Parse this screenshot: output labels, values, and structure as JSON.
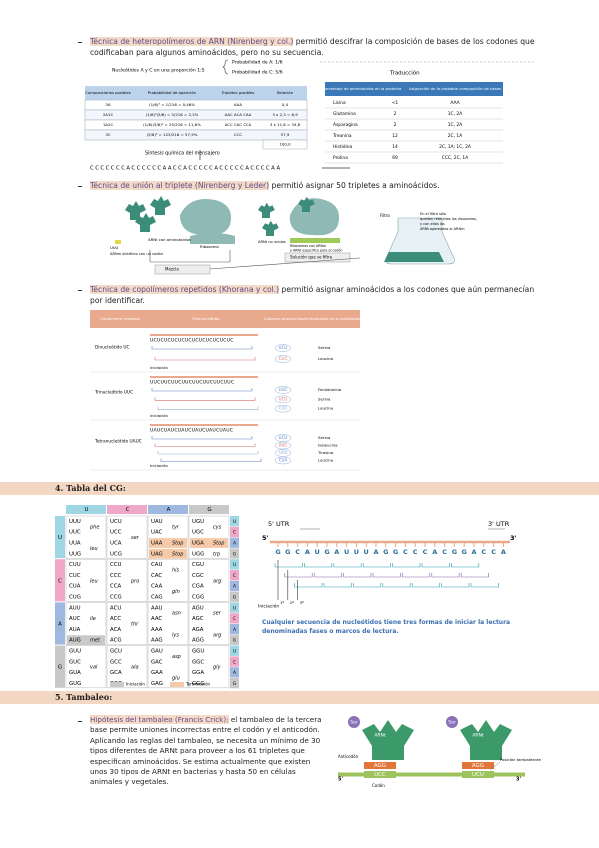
{
  "sections": [
    {
      "highlight": "Técnica de heteropolímeros de ARN (Nirenberg y col.)",
      "text": " permitió descifrar la composición de bases de los codones que codificaban para algunos aminoácidos, pero no su secuencia."
    },
    {
      "highlight": "Técnica de unión al triplete (Nirenberg y Leder)",
      "text": " permitió asignar 50 tripletes a aminoácidos."
    },
    {
      "highlight": "Técnica de copolímeros repetidos (Khorana y col.)",
      "text": " permitió asignar aminoácidos a los codones que aún permanecían por identificar."
    }
  ],
  "fig1": {
    "caption": "Nucleótidos A y C en una proporción 1:5",
    "prob_a": "Probabilidad de A: 1/6",
    "prob_c": "Probabilidad de C: 5/6",
    "left_headers": [
      "Composiciones posibles",
      "Probabilidad de aparición",
      "Tripletes posibles",
      "Relación"
    ],
    "left_rows": [
      [
        "3A",
        "(1/6)³ = 1/216 = 0,46%",
        "AAA",
        "0,4"
      ],
      [
        "2A1C",
        "(1/6)²(5/6) = 5/216 = 2,3%",
        "AAC ACA CAA",
        "3 x 2,3 = 6,9"
      ],
      [
        "1A2C",
        "(1/6)(5/6)² = 25/216 = 11,6%",
        "ACC CAC CCA",
        "3 x 11,6 = 34,8"
      ],
      [
        "3C",
        "(5/6)³ = 125/216 = 57,9%",
        "CCC",
        "57,9"
      ]
    ],
    "total": "100,0",
    "synthesis": "Síntesis química del mensajero",
    "sequence": "CCCCCCCACCCCCCAACCACCCCCACCCCCACCCCAA",
    "translation": "Traducción",
    "right_headers": [
      "Porcentaje de aminoácidos en la proteína",
      "Asignación de la probable composición de bases"
    ],
    "right_rows": [
      [
        "Lisina",
        "<1",
        "AAA"
      ],
      [
        "Glutamina",
        "2",
        "1C, 2A"
      ],
      [
        "Asparagina",
        "2",
        "1C, 2A"
      ],
      [
        "Treonina",
        "12",
        "2C, 1A"
      ],
      [
        "Histidina",
        "14",
        "2C, 1A; 1C, 2A"
      ],
      [
        "Prolina",
        "69",
        "CCC, 2C, 1A"
      ]
    ]
  },
  "fig2": {
    "labels": [
      "UUU",
      "ARNm sintético con un codón",
      "ARNt con aminoácidos",
      "Ribosoma",
      "ARNt no unidos",
      "Ribosomas con ARNm y ARNt específico para el codón",
      "Mezcla",
      "Solución que se filtra",
      "Filtro",
      "En el filtro sólo quedan retenidos los ribosomas, y con ellos los ARNt apareados al ARNm"
    ]
  },
  "fig3": {
    "headers": [
      "Copolímero repetido",
      "Polinucleótido",
      "Codones producidos",
      "Aminoácidos en el polipéptido"
    ],
    "start": "Iniciación",
    "rows": [
      {
        "name": "Dinucleótido UC",
        "strand": "UCUCUCUCUCUCUCUCUCUCUCUC",
        "codons": [
          "UCU",
          "CUC"
        ],
        "aa": [
          "Serina",
          "Leucina"
        ]
      },
      {
        "name": "Trinucleótido UUC",
        "strand": "UUCUUCUUCUUCUUCUUCUUCUUC",
        "codons": [
          "UUC",
          "UCU",
          "CUU"
        ],
        "aa": [
          "Fenilalanina",
          "Serina",
          "Leucina"
        ]
      },
      {
        "name": "Tetranucleótido UAUC",
        "strand": "UAUCUAUCUAUCUAUCUAUCUAUC",
        "codons": [
          "UCU",
          "AUC",
          "UAU",
          "CUA"
        ],
        "aa": [
          "Serina",
          "Isoleucina",
          "Tirosina",
          "Leucina"
        ]
      }
    ]
  },
  "heading4": "4.   Tabla del CG:",
  "codon_table": {
    "header": [
      "U",
      "C",
      "A",
      "G"
    ],
    "header_colors": [
      "#9fd6e3",
      "#f0a8c8",
      "#9fb8e0",
      "#c8c8c8"
    ],
    "left": [
      "U",
      "C",
      "A",
      "G"
    ],
    "third": [
      "U",
      "C",
      "A",
      "G"
    ],
    "cells": [
      {
        "codons": [
          "UUU",
          "UUC",
          "UUA",
          "UUG"
        ],
        "aa": [
          "phe",
          null,
          "leu",
          null
        ],
        "colors": [
          null,
          null,
          null,
          null
        ]
      },
      {
        "codons": [
          "UCU",
          "UCC",
          "UCA",
          "UCG"
        ],
        "aa": [
          "ser",
          null,
          null,
          null
        ],
        "colors": [
          null,
          null,
          null,
          null
        ]
      },
      {
        "codons": [
          "UAU",
          "UAC",
          "UAA",
          "UAG"
        ],
        "aa": [
          "tyr",
          null,
          "Stop",
          "Stop"
        ],
        "colors": [
          null,
          null,
          "#f6c9a8",
          "#f6c9a8"
        ]
      },
      {
        "codons": [
          "UGU",
          "UGC",
          "UGA",
          "UGG"
        ],
        "aa": [
          "cys",
          null,
          "Stop",
          "trp"
        ],
        "colors": [
          null,
          null,
          "#f6c9a8",
          null
        ]
      },
      {
        "codons": [
          "CUU",
          "CUC",
          "CUA",
          "CUG"
        ],
        "aa": [
          "leu",
          null,
          null,
          null
        ],
        "colors": [
          null,
          null,
          null,
          null
        ]
      },
      {
        "codons": [
          "CCU",
          "CCC",
          "CCA",
          "CCG"
        ],
        "aa": [
          "pro",
          null,
          null,
          null
        ],
        "colors": [
          null,
          null,
          null,
          null
        ]
      },
      {
        "codons": [
          "CAU",
          "CAC",
          "CAA",
          "CAG"
        ],
        "aa": [
          "his",
          null,
          "gln",
          null
        ],
        "colors": [
          null,
          null,
          null,
          null
        ]
      },
      {
        "codons": [
          "CGU",
          "CGC",
          "CGA",
          "CGG"
        ],
        "aa": [
          "arg",
          null,
          null,
          null
        ],
        "colors": [
          null,
          null,
          null,
          null
        ]
      },
      {
        "codons": [
          "AUU",
          "AUC",
          "AUA",
          "AUG"
        ],
        "aa": [
          "ile",
          null,
          null,
          "met"
        ],
        "colors": [
          null,
          null,
          null,
          "#c9c9c9"
        ]
      },
      {
        "codons": [
          "ACU",
          "ACC",
          "ACA",
          "ACG"
        ],
        "aa": [
          "thr",
          null,
          null,
          null
        ],
        "colors": [
          null,
          null,
          null,
          null
        ]
      },
      {
        "codons": [
          "AAU",
          "AAC",
          "AAA",
          "AAG"
        ],
        "aa": [
          "asn",
          null,
          "lys",
          null
        ],
        "colors": [
          null,
          null,
          null,
          null
        ]
      },
      {
        "codons": [
          "AGU",
          "AGC",
          "AGA",
          "AGG"
        ],
        "aa": [
          "ser",
          null,
          "arg",
          null
        ],
        "colors": [
          null,
          null,
          null,
          null
        ]
      },
      {
        "codons": [
          "GUU",
          "GUC",
          "GUA",
          "GUG"
        ],
        "aa": [
          "val",
          null,
          null,
          null
        ],
        "colors": [
          null,
          null,
          null,
          null
        ]
      },
      {
        "codons": [
          "GCU",
          "GCC",
          "GCA",
          "GCG"
        ],
        "aa": [
          "ala",
          null,
          null,
          null
        ],
        "colors": [
          null,
          null,
          null,
          null
        ]
      },
      {
        "codons": [
          "GAU",
          "GAC",
          "GAA",
          "GAG"
        ],
        "aa": [
          "asp",
          null,
          "glu",
          null
        ],
        "colors": [
          null,
          null,
          null,
          null
        ]
      },
      {
        "codons": [
          "GGU",
          "GGC",
          "GGA",
          "GGG"
        ],
        "aa": [
          "gly",
          null,
          null,
          null
        ],
        "colors": [
          null,
          null,
          null,
          null
        ]
      }
    ],
    "legend": [
      {
        "label": "Iniciación",
        "color": "#c9c9c9"
      },
      {
        "label": "Terminación",
        "color": "#f6c9a8"
      }
    ]
  },
  "reading_frames": {
    "utr5": "5' UTR",
    "utr3": "3' UTR",
    "end5": "5'",
    "end3": "3'",
    "sequence": [
      "G",
      "G",
      "C",
      "A",
      "U",
      "G",
      "A",
      "U",
      "U",
      "U",
      "A",
      "G",
      "G",
      "C",
      "C",
      "C",
      "A",
      "C",
      "G",
      "G",
      "A",
      "C",
      "C",
      "A"
    ],
    "start": "Iniciación",
    "frames": [
      "1º",
      "2º",
      "3º"
    ],
    "frame_colors": [
      "#2a9fb8",
      "#8a5fb0",
      "#2a9fb8"
    ],
    "caption": "Cualquier secuencia de nucleótidos tiene tres formas de iniciar la lectura denominadas fases o marcos de lectura."
  },
  "heading5": "5.   Tambaleo:",
  "wobble": {
    "highlight": "Hipótesis del tambaleo (Francis Crick):",
    "text": " el tambaleo de la tercera base permite uniones incorrectas entre el codón y el anticodón. Aplicando las reglas del tambaleo, se necesita un mínimo de 30 tipos diferentes de ARNt para proveer a los 61 tripletes que especifican aminoácidos. Se estima actualmente que existen unos 30 tipos de ARNt en bacterias y hasta 50 en células animales y vegetales.",
    "figure": {
      "aa": "Ser",
      "trna": "ARNt",
      "anticodon_label": "Anticodón",
      "codon_label": "Codón",
      "wobble_label": "Posición tambaleante",
      "end5": "5'",
      "end3": "3'",
      "left": {
        "anticodon": "AGG",
        "codon": "UCC"
      },
      "right": {
        "anticodon": "AGG",
        "codon": "UCU"
      }
    }
  }
}
